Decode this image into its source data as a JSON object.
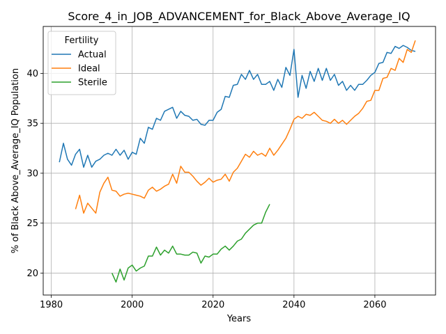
{
  "chart_data": {
    "type": "line",
    "title": "Score_4_in_JOB_ADVANCEMENT_for_Black_Above_Average_IQ",
    "xlabel": "Years",
    "ylabel": "% of Black Above_Average_IQ Population",
    "xlim": [
      1978,
      2075
    ],
    "ylim": [
      17.8,
      44.7
    ],
    "x_ticks": [
      1980,
      2000,
      2020,
      2040,
      2060
    ],
    "y_ticks": [
      20,
      25,
      30,
      35,
      40
    ],
    "grid": true,
    "legend": {
      "title": "Fertility",
      "placement": "top-left"
    },
    "series": [
      {
        "name": "Actual",
        "color": "#1f77b4",
        "x": [
          1982,
          1983,
          1984,
          1985,
          1986,
          1987,
          1988,
          1989,
          1990,
          1991,
          1992,
          1993,
          1994,
          1995,
          1996,
          1997,
          1998,
          1999,
          2000,
          2001,
          2002,
          2003,
          2004,
          2005,
          2006,
          2007,
          2008,
          2009,
          2010,
          2011,
          2012,
          2013,
          2014,
          2015,
          2016,
          2017,
          2018,
          2019,
          2020,
          2021,
          2022,
          2023,
          2024,
          2025,
          2026,
          2027,
          2028,
          2029,
          2030,
          2031,
          2032,
          2033,
          2034,
          2035,
          2036,
          2037,
          2038,
          2039,
          2040,
          2041,
          2042,
          2043,
          2044,
          2045,
          2046,
          2047,
          2048,
          2049,
          2050,
          2051,
          2052,
          2053,
          2054,
          2055,
          2056,
          2057,
          2058,
          2059,
          2060,
          2061,
          2062,
          2063,
          2064,
          2065,
          2066,
          2067,
          2068,
          2069,
          2070
        ],
        "values": [
          31.1,
          33.0,
          31.4,
          30.8,
          31.9,
          32.4,
          30.6,
          31.8,
          30.6,
          31.2,
          31.4,
          31.8,
          32.0,
          31.8,
          32.4,
          31.8,
          32.3,
          31.4,
          32.1,
          31.9,
          33.5,
          33.0,
          34.6,
          34.4,
          35.5,
          35.3,
          36.2,
          36.4,
          36.6,
          35.5,
          36.2,
          35.8,
          35.7,
          35.3,
          35.4,
          34.9,
          34.8,
          35.3,
          35.3,
          36.1,
          36.4,
          37.7,
          37.6,
          38.8,
          38.9,
          39.9,
          39.4,
          40.3,
          39.4,
          39.9,
          38.9,
          38.9,
          39.2,
          38.3,
          39.4,
          38.6,
          40.6,
          39.8,
          42.4,
          37.6,
          39.8,
          38.5,
          40.2,
          39.2,
          40.5,
          39.3,
          40.5,
          39.3,
          39.9,
          38.8,
          39.2,
          38.3,
          38.8,
          38.3,
          38.9,
          38.9,
          39.3,
          39.8,
          40.1,
          41.0,
          41.1,
          42.1,
          42.0,
          42.7,
          42.5,
          42.8,
          42.6,
          42.3,
          42.2
        ]
      },
      {
        "name": "Ideal",
        "color": "#ff7f0e",
        "x": [
          1986,
          1987,
          1988,
          1989,
          1990,
          1991,
          1992,
          1993,
          1994,
          1995,
          1996,
          1997,
          1998,
          1999,
          2000,
          2001,
          2002,
          2003,
          2004,
          2005,
          2006,
          2007,
          2008,
          2009,
          2010,
          2011,
          2012,
          2013,
          2014,
          2015,
          2016,
          2017,
          2018,
          2019,
          2020,
          2021,
          2022,
          2023,
          2024,
          2025,
          2026,
          2027,
          2028,
          2029,
          2030,
          2031,
          2032,
          2033,
          2034,
          2035,
          2036,
          2037,
          2038,
          2039,
          2040,
          2041,
          2042,
          2043,
          2044,
          2045,
          2046,
          2047,
          2048,
          2049,
          2050,
          2051,
          2052,
          2053,
          2054,
          2055,
          2056,
          2057,
          2058,
          2059,
          2060,
          2061,
          2062,
          2063,
          2064,
          2065,
          2066,
          2067,
          2068,
          2069,
          2070
        ],
        "values": [
          26.4,
          27.8,
          26.0,
          27.0,
          26.5,
          26.0,
          28.1,
          29.0,
          29.6,
          28.3,
          28.2,
          27.7,
          27.9,
          28.0,
          27.9,
          27.8,
          27.7,
          27.5,
          28.3,
          28.6,
          28.2,
          28.4,
          28.7,
          28.9,
          29.9,
          29.0,
          30.7,
          30.1,
          30.1,
          29.7,
          29.2,
          28.8,
          29.1,
          29.5,
          29.1,
          29.3,
          29.4,
          29.9,
          29.2,
          30.1,
          30.5,
          31.2,
          31.9,
          31.6,
          32.2,
          31.8,
          32.0,
          31.7,
          32.5,
          31.8,
          32.3,
          32.9,
          33.5,
          34.4,
          35.4,
          35.7,
          35.5,
          35.9,
          35.8,
          36.1,
          35.7,
          35.3,
          35.2,
          35.0,
          35.4,
          35.0,
          35.3,
          34.9,
          35.3,
          35.7,
          36.0,
          36.5,
          37.2,
          37.3,
          38.3,
          38.3,
          39.5,
          39.6,
          40.5,
          40.3,
          41.5,
          41.1,
          42.4,
          42.1,
          43.3
        ]
      },
      {
        "name": "Sterile",
        "color": "#2ca02c",
        "x": [
          1995,
          1996,
          1997,
          1998,
          1999,
          2000,
          2001,
          2002,
          2003,
          2004,
          2005,
          2006,
          2007,
          2008,
          2009,
          2010,
          2011,
          2012,
          2013,
          2014,
          2015,
          2016,
          2017,
          2018,
          2019,
          2020,
          2021,
          2022,
          2023,
          2024,
          2025,
          2026,
          2027,
          2028,
          2029,
          2030,
          2031,
          2032,
          2033,
          2034
        ],
        "values": [
          20.0,
          19.1,
          20.4,
          19.3,
          20.5,
          20.8,
          20.2,
          20.5,
          20.7,
          21.7,
          21.7,
          22.6,
          21.8,
          22.3,
          22.0,
          22.7,
          21.9,
          21.9,
          21.8,
          21.8,
          22.1,
          22.0,
          21.0,
          21.7,
          21.6,
          21.9,
          21.9,
          22.4,
          22.7,
          22.3,
          22.7,
          23.2,
          23.4,
          24.0,
          24.4,
          24.8,
          25.0,
          25.0,
          26.1,
          26.9
        ]
      }
    ]
  }
}
